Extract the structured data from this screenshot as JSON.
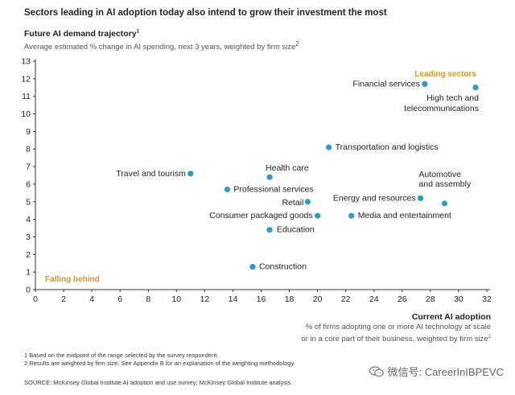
{
  "header": {
    "title": "Sectors leading in AI adoption today also intend to grow their investment the most",
    "y_title": "Future AI demand trajectory",
    "y_title_sup": "1",
    "y_subtitle": "Average estimated % change in AI spending, next 3 years, weighted by firm size",
    "y_subtitle_sup": "2",
    "x_title": "Current AI adoption",
    "x_subtitle_line1": "% of firms adopting one or more AI technology at scale",
    "x_subtitle_line2": "or in a core part of their business, weighted by firm size",
    "x_subtitle_sup": "2"
  },
  "footnotes": {
    "n1": "1  Based on the midpoint of the range selected by the survey respondent.",
    "n2": "2  Results are weighted by firm size. See Appendix B for an explanation of the weighting methodology.",
    "source": "SOURCE:  McKinsey Global Institute AI adoption and use survey; McKinsey Global Institute analysis"
  },
  "watermark": {
    "text": "微信号: CareerInIBPEVC",
    "icon": "wechat-icon"
  },
  "colors": {
    "dot": "#2e9bc6",
    "highlight": "#d9962b",
    "axis": "#333333"
  },
  "chart_data": {
    "type": "scatter",
    "title": "Sectors leading in AI adoption today also intend to grow their investment the most",
    "xlabel": "Current AI adoption",
    "ylabel": "Future AI demand trajectory",
    "xlim": [
      0,
      32
    ],
    "ylim": [
      0,
      13
    ],
    "xticks": [
      0,
      2,
      4,
      6,
      8,
      10,
      12,
      14,
      16,
      18,
      20,
      22,
      24,
      26,
      28,
      30,
      32
    ],
    "yticks": [
      0,
      1,
      2,
      3,
      4,
      5,
      6,
      7,
      8,
      9,
      10,
      11,
      12,
      13
    ],
    "grid": false,
    "annotations": [
      {
        "text": "Leading sectors",
        "corner": "top-right"
      },
      {
        "text": "Falling behind",
        "corner": "bottom-left"
      }
    ],
    "points": [
      {
        "label": "Financial services",
        "x": 27.6,
        "y": 11.7
      },
      {
        "label": "High tech and telecommunications",
        "x": 31.2,
        "y": 11.5
      },
      {
        "label": "Transportation and logistics",
        "x": 20.8,
        "y": 8.1
      },
      {
        "label": "Travel and tourism",
        "x": 11.0,
        "y": 6.6
      },
      {
        "label": "Health care",
        "x": 16.6,
        "y": 6.4
      },
      {
        "label": "Professional services",
        "x": 13.6,
        "y": 5.7
      },
      {
        "label": "Retail",
        "x": 19.3,
        "y": 5.0
      },
      {
        "label": "Energy and resources",
        "x": 27.3,
        "y": 5.2
      },
      {
        "label": "Automotive and assembly",
        "x": 29.0,
        "y": 4.9
      },
      {
        "label": "Consumer packaged goods",
        "x": 20.0,
        "y": 4.2
      },
      {
        "label": "Media and entertainment",
        "x": 22.4,
        "y": 4.2
      },
      {
        "label": "Education",
        "x": 16.6,
        "y": 3.4
      },
      {
        "label": "Construction",
        "x": 15.4,
        "y": 1.3
      }
    ]
  }
}
